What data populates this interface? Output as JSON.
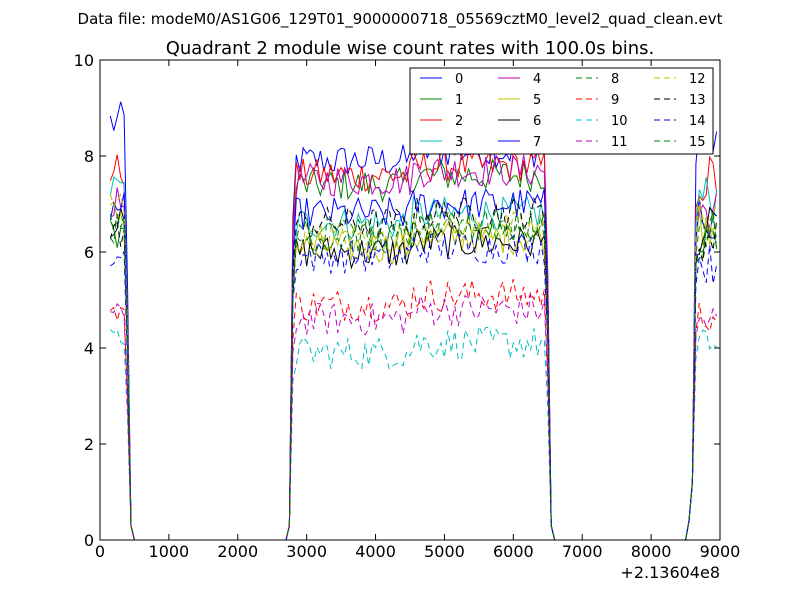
{
  "chart_data": {
    "type": "line",
    "suptitle": "Data file: modeM0/AS1G06_129T01_9000000718_05569cztM0_level2_quad_clean.evt",
    "title": "Quadrant 2 module wise count rates with 100.0s bins.",
    "xlabel": "",
    "ylabel": "",
    "xlim": [
      0,
      9000
    ],
    "ylim": [
      0,
      10
    ],
    "x_offset_label": "+2.13604e8",
    "x_ticks": [
      0,
      1000,
      2000,
      3000,
      4000,
      5000,
      6000,
      7000,
      8000,
      9000
    ],
    "y_ticks": [
      0,
      2,
      4,
      6,
      8,
      10
    ],
    "x_tick_labels": [
      "0",
      "1000",
      "2000",
      "3000",
      "4000",
      "5000",
      "6000",
      "7000",
      "8000",
      "9000"
    ],
    "y_tick_labels": [
      "0",
      "2",
      "4",
      "6",
      "8",
      "10"
    ],
    "legend_position": "top-right",
    "legend_columns": 4,
    "segments": [
      [
        150,
        450
      ],
      [
        2750,
        6550
      ],
      [
        8550,
        8950
      ]
    ],
    "series": [
      {
        "name": "0",
        "color": "#0000ff",
        "dash": "solid",
        "level": 7.9,
        "start": 8.7
      },
      {
        "name": "1",
        "color": "#008000",
        "dash": "solid",
        "level": 7.4,
        "start": 6.4
      },
      {
        "name": "2",
        "color": "#ff0000",
        "dash": "solid",
        "level": 7.6,
        "start": 7.7
      },
      {
        "name": "3",
        "color": "#00bfbf",
        "dash": "solid",
        "level": 6.6,
        "start": 7.3
      },
      {
        "name": "4",
        "color": "#bf00bf",
        "dash": "solid",
        "level": 7.5,
        "start": 7.0
      },
      {
        "name": "5",
        "color": "#bfbf00",
        "dash": "solid",
        "level": 6.1,
        "start": 6.8
      },
      {
        "name": "6",
        "color": "#000000",
        "dash": "solid",
        "level": 6.0,
        "start": 6.6
      },
      {
        "name": "7",
        "color": "#0000ff",
        "dash": "solid",
        "level": 6.8,
        "start": 6.9
      },
      {
        "name": "8",
        "color": "#008000",
        "dash": "dashed",
        "level": 6.4,
        "start": 6.6
      },
      {
        "name": "9",
        "color": "#ff0000",
        "dash": "dashed",
        "level": 4.9,
        "start": 4.8
      },
      {
        "name": "10",
        "color": "#00bfbf",
        "dash": "dashed",
        "level": 3.9,
        "start": 4.2
      },
      {
        "name": "11",
        "color": "#bf00bf",
        "dash": "dashed",
        "level": 4.6,
        "start": 4.7
      },
      {
        "name": "12",
        "color": "#bfbf00",
        "dash": "dashed",
        "level": 6.3,
        "start": 7.0
      },
      {
        "name": "13",
        "color": "#000000",
        "dash": "dashed",
        "level": 6.6,
        "start": 6.4
      },
      {
        "name": "14",
        "color": "#0000ff",
        "dash": "dashed",
        "level": 5.9,
        "start": 5.9
      },
      {
        "name": "15",
        "color": "#008000",
        "dash": "dashed",
        "level": 6.3,
        "start": 6.5
      }
    ]
  }
}
